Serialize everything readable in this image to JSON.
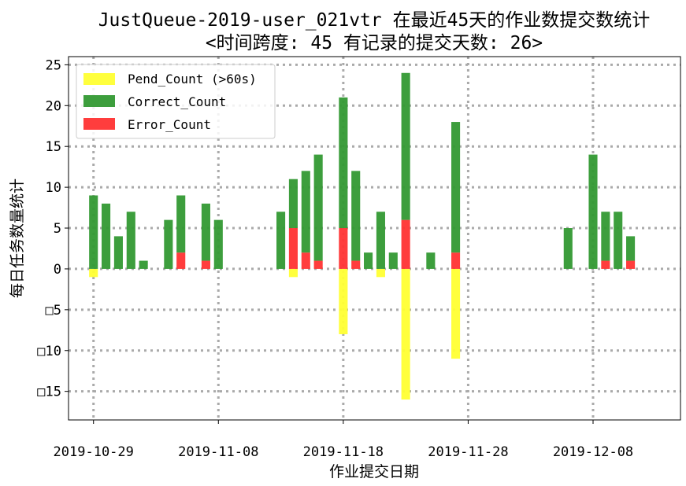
{
  "chart_data": {
    "type": "bar",
    "stacked": true,
    "title_line1": "JustQueue-2019-user_021vtr 在最近45天的作业数提交数统计",
    "title_line2": "<时间跨度: 45  有记录的提交天数: 26>",
    "xlabel": "作业提交日期",
    "ylabel": "每日任务数量统计",
    "xlim": [
      "2019-10-27",
      "2019-12-15"
    ],
    "ylim": [
      -18.5,
      26
    ],
    "x_ticks": [
      "2019-10-29",
      "2019-11-08",
      "2019-11-18",
      "2019-11-28",
      "2019-12-08"
    ],
    "y_ticks": [
      25,
      20,
      15,
      10,
      5,
      0,
      -5,
      -10,
      -15
    ],
    "y_tick_labels": [
      "25",
      "20",
      "15",
      "10",
      "5",
      "0",
      "□5",
      "□10",
      "□15"
    ],
    "grid": true,
    "legend_position": "top-left",
    "colors": {
      "pend": "#ffff33",
      "correct": "#339933",
      "error": "#ff3333"
    },
    "series": [
      {
        "name": "Pend_Count (>60s)",
        "color": "#ffff33",
        "points": [
          {
            "date": "2019-10-29",
            "value": -1
          },
          {
            "date": "2019-11-14",
            "value": -1
          },
          {
            "date": "2019-11-18",
            "value": -8
          },
          {
            "date": "2019-11-21",
            "value": -1
          },
          {
            "date": "2019-11-23",
            "value": -16
          },
          {
            "date": "2019-11-27",
            "value": -11
          }
        ]
      },
      {
        "name": "Correct_Count",
        "color": "#339933",
        "points": [
          {
            "date": "2019-10-29",
            "value": 9
          },
          {
            "date": "2019-10-30",
            "value": 8
          },
          {
            "date": "2019-10-31",
            "value": 4
          },
          {
            "date": "2019-11-01",
            "value": 7
          },
          {
            "date": "2019-11-02",
            "value": 1
          },
          {
            "date": "2019-11-04",
            "value": 6
          },
          {
            "date": "2019-11-05",
            "value": 7
          },
          {
            "date": "2019-11-07",
            "value": 7
          },
          {
            "date": "2019-11-08",
            "value": 6
          },
          {
            "date": "2019-11-13",
            "value": 7
          },
          {
            "date": "2019-11-14",
            "value": 6
          },
          {
            "date": "2019-11-15",
            "value": 10
          },
          {
            "date": "2019-11-16",
            "value": 13
          },
          {
            "date": "2019-11-18",
            "value": 16
          },
          {
            "date": "2019-11-19",
            "value": 11
          },
          {
            "date": "2019-11-20",
            "value": 2
          },
          {
            "date": "2019-11-21",
            "value": 7
          },
          {
            "date": "2019-11-22",
            "value": 2
          },
          {
            "date": "2019-11-23",
            "value": 18
          },
          {
            "date": "2019-11-25",
            "value": 2
          },
          {
            "date": "2019-11-27",
            "value": 16
          },
          {
            "date": "2019-12-06",
            "value": 5
          },
          {
            "date": "2019-12-08",
            "value": 14
          },
          {
            "date": "2019-12-09",
            "value": 6
          },
          {
            "date": "2019-12-10",
            "value": 7
          },
          {
            "date": "2019-12-11",
            "value": 3
          }
        ]
      },
      {
        "name": "Error_Count",
        "color": "#ff3333",
        "points": [
          {
            "date": "2019-11-05",
            "value": 2
          },
          {
            "date": "2019-11-07",
            "value": 1
          },
          {
            "date": "2019-11-14",
            "value": 5
          },
          {
            "date": "2019-11-15",
            "value": 2
          },
          {
            "date": "2019-11-16",
            "value": 1
          },
          {
            "date": "2019-11-18",
            "value": 5
          },
          {
            "date": "2019-11-19",
            "value": 1
          },
          {
            "date": "2019-11-23",
            "value": 6
          },
          {
            "date": "2019-11-27",
            "value": 2
          },
          {
            "date": "2019-12-09",
            "value": 1
          },
          {
            "date": "2019-12-11",
            "value": 1
          }
        ]
      }
    ]
  }
}
